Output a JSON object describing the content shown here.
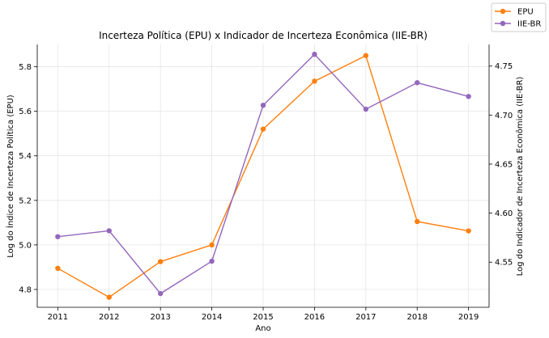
{
  "chart_data": {
    "type": "line",
    "title": "Incerteza Política (EPU) x Indicador de Incerteza Econômica (IIE-BR)",
    "xlabel": "Ano",
    "ylabel_left": "Log do Índice de Incerteza Política (EPU)",
    "ylabel_right": "Log do Indicador de Incerteza Econômica (IIE-BR)",
    "x": [
      2011,
      2012,
      2013,
      2014,
      2015,
      2016,
      2017,
      2018,
      2019
    ],
    "ylim_left": [
      4.72,
      5.9
    ],
    "ylim_right": [
      4.504,
      4.772
    ],
    "yticks_left": [
      "4.8",
      "5.0",
      "5.2",
      "5.4",
      "5.6",
      "5.8"
    ],
    "yticks_right": [
      "4.55",
      "4.60",
      "4.65",
      "4.70",
      "4.75"
    ],
    "grid": true,
    "legend_position": "top-right (outside plot)",
    "series": [
      {
        "name": "EPU",
        "axis": "left",
        "color": "#ff7f0e",
        "values": [
          4.895,
          4.765,
          4.925,
          5.0,
          5.52,
          5.735,
          5.85,
          5.105,
          5.063
        ]
      },
      {
        "name": "IIE-BR",
        "axis": "right",
        "color": "#9467bd",
        "values": [
          4.576,
          4.582,
          4.518,
          4.551,
          4.71,
          4.762,
          4.706,
          4.733,
          4.719
        ]
      }
    ]
  }
}
